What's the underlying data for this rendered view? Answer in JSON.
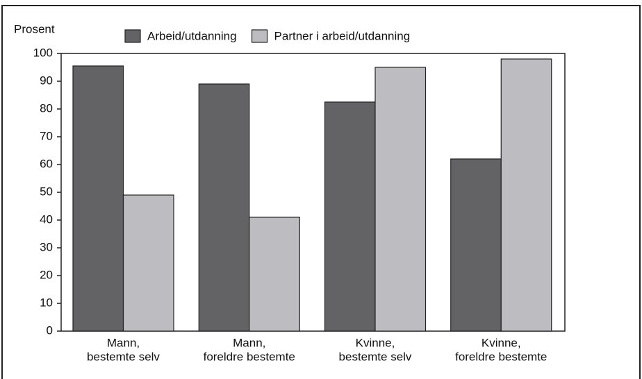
{
  "chart_data": {
    "type": "bar",
    "y_label": "Prosent",
    "categories": [
      [
        "Mann,",
        "bestemte selv"
      ],
      [
        "Mann,",
        "foreldre bestemte"
      ],
      [
        "Kvinne,",
        "bestemte selv"
      ],
      [
        "Kvinne,",
        "foreldre bestemte"
      ]
    ],
    "series": [
      {
        "name": "Arbeid/utdanning",
        "color": "#636366",
        "values": [
          95.5,
          89,
          82.5,
          62
        ]
      },
      {
        "name": "Partner i arbeid/utdanning",
        "color": "#bdbdc1",
        "values": [
          49,
          41,
          95,
          98
        ]
      }
    ],
    "ylim": [
      0,
      100
    ],
    "yticks": [
      0,
      10,
      20,
      30,
      40,
      50,
      60,
      70,
      80,
      90,
      100
    ]
  }
}
